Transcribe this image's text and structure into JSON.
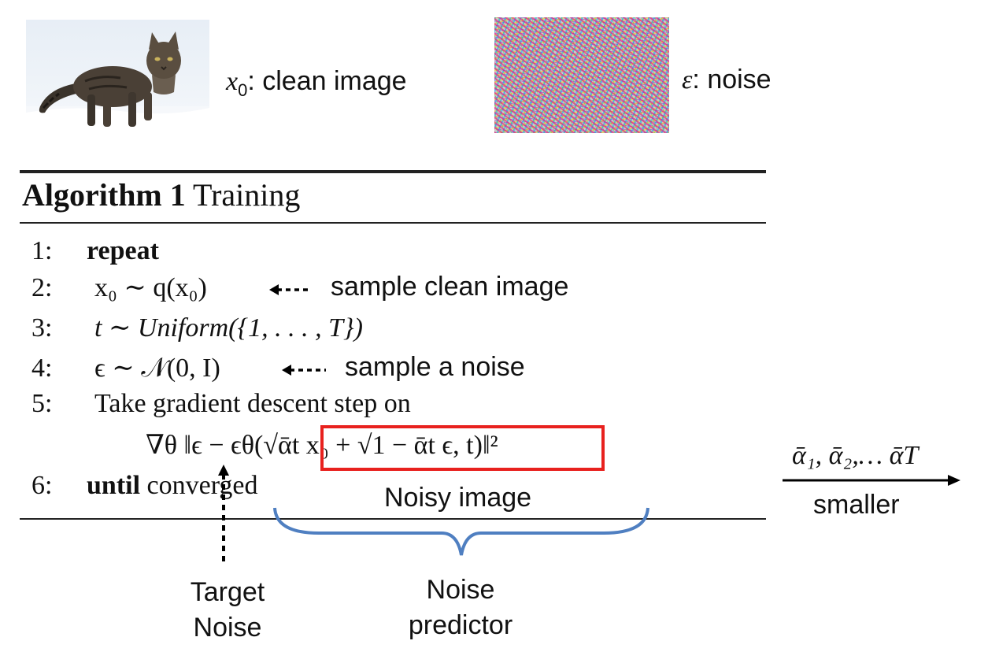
{
  "top": {
    "clean_label": "clean image",
    "clean_var": "x",
    "clean_sub": "0",
    "noise_label": "noise",
    "noise_var": "ε"
  },
  "algorithm": {
    "title_bold": "Algorithm 1",
    "title_rest": "Training",
    "lines": [
      {
        "num": "1:",
        "text": "repeat"
      },
      {
        "num": "2:",
        "text": "x₀ ∼ q(x₀)"
      },
      {
        "num": "3:",
        "text": "t ∼ Uniform({1, . . . , T})"
      },
      {
        "num": "4:",
        "text": "ϵ ∼ 𝒩(0, I)"
      },
      {
        "num": "5:",
        "text": "Take gradient descent step on"
      },
      {
        "num": "",
        "text": "∇θ ‖ϵ − ϵθ(√ᾱt x₀ + √1 − ᾱt ϵ, t)‖²"
      },
      {
        "num": "6:",
        "text_bold": "until",
        "text_rest": "converged"
      }
    ]
  },
  "annotations": {
    "sample_clean": "sample clean image",
    "sample_noise": "sample a noise",
    "noisy_image": "Noisy image",
    "target_noise_1": "Target",
    "target_noise_2": "Noise",
    "noise_pred_1": "Noise",
    "noise_pred_2": "predictor"
  },
  "schedule": {
    "alphas": "ᾱ₁, ᾱ₂,… ᾱT",
    "label": "smaller"
  },
  "colors": {
    "highlight_box": "#e8211e",
    "brace": "#4f7fc1",
    "rule": "#222222"
  }
}
